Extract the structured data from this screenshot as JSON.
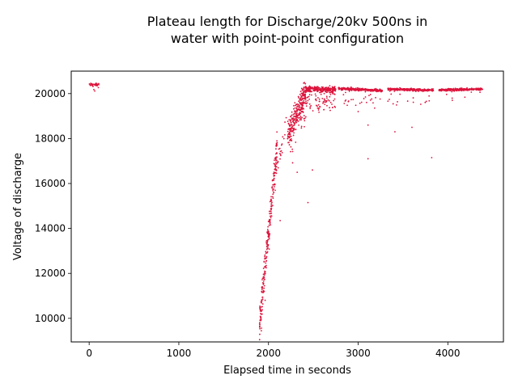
{
  "chart_data": {
    "type": "scatter",
    "title": "Plateau length for Discharge/20kv 500ns in\nwater with point-point configuration",
    "xlabel": "Elapsed time in seconds",
    "ylabel": "Voltage of discharge",
    "xlim": [
      -200,
      4620
    ],
    "ylim": [
      8950,
      21000
    ],
    "xticks": [
      0,
      1000,
      2000,
      3000,
      4000
    ],
    "yticks": [
      10000,
      12000,
      14000,
      16000,
      18000,
      20000
    ],
    "grid": false,
    "marker_color": "#dc143c",
    "series": [
      {
        "segments": [
          {
            "x_start": 0,
            "x_end": 110,
            "count": 40,
            "center": [
              20400,
              20400
            ],
            "spread": 60,
            "outlier_rate": 0.1,
            "outlier_depth": 350
          },
          {
            "x_start": 1900,
            "x_end": 2100,
            "count": 260,
            "center": [
              9800,
              17800
            ],
            "spread": 700,
            "outlier_rate": 0.05,
            "outlier_depth": 1200
          },
          {
            "x_start": 2100,
            "x_end": 2200,
            "count": 20,
            "center": [
              16800,
              18600
            ],
            "spread": 500,
            "outlier_rate": 0,
            "outlier_depth": 0
          },
          {
            "x_start": 2210,
            "x_end": 2420,
            "count": 300,
            "center": [
              18000,
              20100
            ],
            "spread": 600,
            "outlier_rate": 0.06,
            "outlier_depth": 1300
          },
          {
            "x_start": 2420,
            "x_end": 2750,
            "count": 320,
            "center": [
              20200,
              20200
            ],
            "spread": 120,
            "outlier_rate": 0.25,
            "outlier_depth": 900
          },
          {
            "x_start": 2780,
            "x_end": 3270,
            "count": 320,
            "center": [
              20230,
              20130
            ],
            "spread": 60,
            "outlier_rate": 0.08,
            "outlier_depth": 800
          },
          {
            "x_start": 3330,
            "x_end": 3840,
            "count": 280,
            "center": [
              20200,
              20150
            ],
            "spread": 50,
            "outlier_rate": 0.05,
            "outlier_depth": 700
          },
          {
            "x_start": 3900,
            "x_end": 4390,
            "count": 300,
            "center": [
              20160,
              20200
            ],
            "spread": 50,
            "outlier_rate": 0.02,
            "outlier_depth": 400
          }
        ],
        "outliers": [
          {
            "x": 2440,
            "y": 15150
          },
          {
            "x": 3110,
            "y": 17100
          },
          {
            "x": 3820,
            "y": 17150
          },
          {
            "x": 3410,
            "y": 18300
          },
          {
            "x": 3600,
            "y": 18500
          },
          {
            "x": 3110,
            "y": 18600
          },
          {
            "x": 2490,
            "y": 16600
          },
          {
            "x": 2320,
            "y": 16500
          },
          {
            "x": 1920,
            "y": 9450
          },
          {
            "x": 1915,
            "y": 9900
          },
          {
            "x": 2130,
            "y": 14350
          },
          {
            "x": 4050,
            "y": 19700
          },
          {
            "x": 3000,
            "y": 19200
          }
        ]
      }
    ]
  }
}
